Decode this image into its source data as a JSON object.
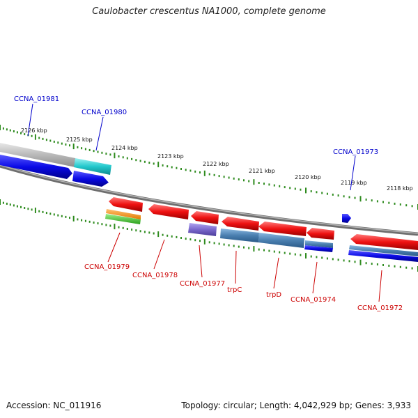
{
  "title": "Caulobacter crescentus NA1000, complete genome",
  "footer": {
    "accession": "Accession: NC_011916",
    "topology": "Topology: circular; Length: 4,042,929 bp; Genes: 3,933"
  },
  "colors": {
    "forward_label": "#0000cc",
    "reverse_label": "#cc0000",
    "ticks": "#2e8b1e",
    "backbone": "#8a8a8a",
    "forward_gene": "#0a0ae6",
    "reverse_gene": "#ee1111",
    "cyan_feature": "#22c8cc",
    "operon_steel": "#4a7fb0",
    "purple_feature": "#7a68cc"
  },
  "scale": {
    "unit": "kbp",
    "labels": [
      "2126 kbp",
      "2125 kbp",
      "2124 kbp",
      "2123 kbp",
      "2122 kbp",
      "2121 kbp",
      "2120 kbp",
      "2119 kbp",
      "2118 kbp"
    ]
  },
  "forward_genes": [
    {
      "name": "CCNA_01981"
    },
    {
      "name": "CCNA_01980"
    },
    {
      "name": "CCNA_01973"
    }
  ],
  "reverse_genes": [
    {
      "name": "CCNA_01979"
    },
    {
      "name": "CCNA_01978"
    },
    {
      "name": "CCNA_01977"
    },
    {
      "name": "trpC"
    },
    {
      "name": "trpD"
    },
    {
      "name": "CCNA_01974"
    },
    {
      "name": "CCNA_01972"
    }
  ]
}
